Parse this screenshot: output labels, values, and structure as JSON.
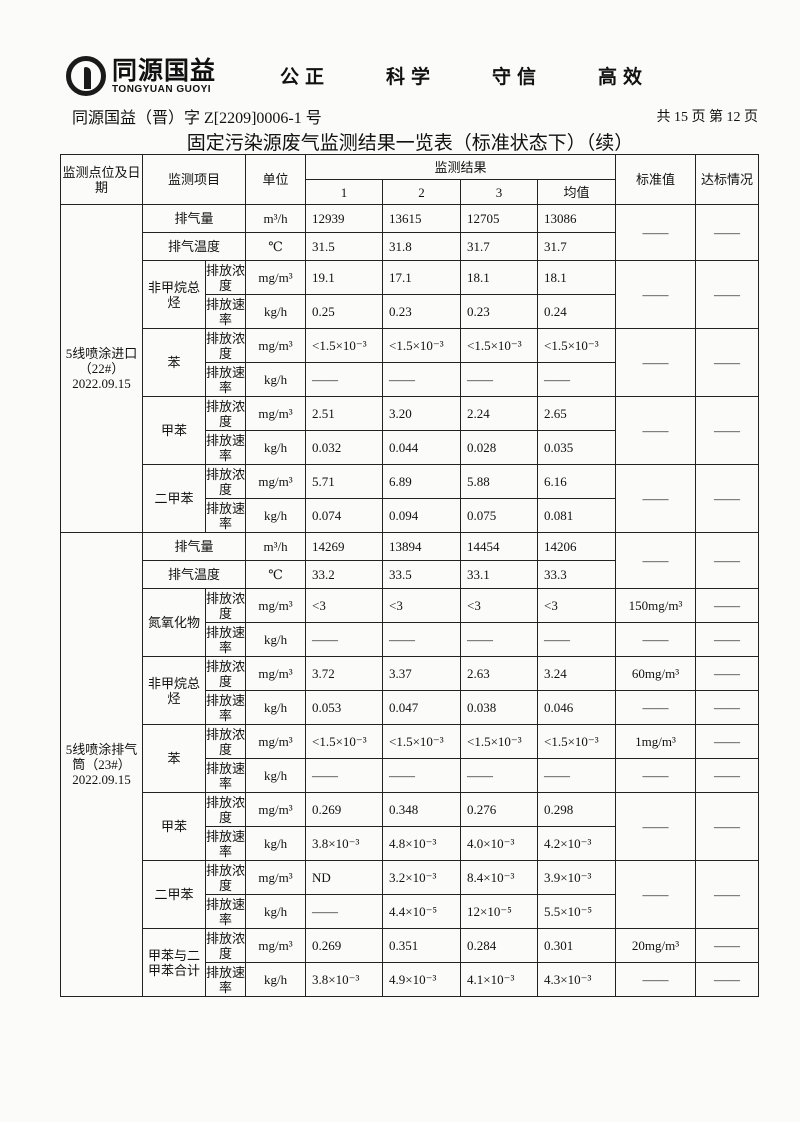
{
  "header": {
    "logo_cn": "同源国益",
    "logo_en": "TONGYUAN GUOYI",
    "slogans": [
      "公正",
      "科学",
      "守信",
      "高效"
    ],
    "doc_no": "同源国益（晋）字 Z[2209]0006-1 号",
    "page_info": "共 15 页  第 12 页",
    "title": "固定污染源废气监测结果一览表（标准状态下）（续）"
  },
  "table": {
    "headers": {
      "site": "监测点位及日期",
      "item": "监测项目",
      "unit": "单位",
      "results": "监测结果",
      "cols": [
        "1",
        "2",
        "3",
        "均值"
      ],
      "std": "标准值",
      "pass": "达标情况"
    },
    "sections": [
      {
        "site": "5线喷涂进口（22#）2022.09.15",
        "groups": [
          {
            "rows": [
              {
                "item": "排气量",
                "unit": "m³/h",
                "values": [
                  "12939",
                  "13615",
                  "12705",
                  "13086"
                ]
              },
              {
                "item": "排气温度",
                "unit": "℃",
                "values": [
                  "31.5",
                  "31.8",
                  "31.7",
                  "31.7"
                ]
              }
            ],
            "std": [
              "——"
            ],
            "pass": [
              "——"
            ]
          },
          {
            "item": "非甲烷总烃",
            "rows": [
              {
                "sub": "排放浓度",
                "unit": "mg/m³",
                "values": [
                  "19.1",
                  "17.1",
                  "18.1",
                  "18.1"
                ]
              },
              {
                "sub": "排放速率",
                "unit": "kg/h",
                "values": [
                  "0.25",
                  "0.23",
                  "0.23",
                  "0.24"
                ]
              }
            ],
            "std": [
              "——"
            ],
            "pass": [
              "——"
            ]
          },
          {
            "item": "苯",
            "rows": [
              {
                "sub": "排放浓度",
                "unit": "mg/m³",
                "values": [
                  "<1.5×10⁻³",
                  "<1.5×10⁻³",
                  "<1.5×10⁻³",
                  "<1.5×10⁻³"
                ]
              },
              {
                "sub": "排放速率",
                "unit": "kg/h",
                "values": [
                  "——",
                  "——",
                  "——",
                  "——"
                ]
              }
            ],
            "std": [
              "——"
            ],
            "pass": [
              "——"
            ]
          },
          {
            "item": "甲苯",
            "rows": [
              {
                "sub": "排放浓度",
                "unit": "mg/m³",
                "values": [
                  "2.51",
                  "3.20",
                  "2.24",
                  "2.65"
                ]
              },
              {
                "sub": "排放速率",
                "unit": "kg/h",
                "values": [
                  "0.032",
                  "0.044",
                  "0.028",
                  "0.035"
                ]
              }
            ],
            "std": [
              "——"
            ],
            "pass": [
              "——"
            ]
          },
          {
            "item": "二甲苯",
            "rows": [
              {
                "sub": "排放浓度",
                "unit": "mg/m³",
                "values": [
                  "5.71",
                  "6.89",
                  "5.88",
                  "6.16"
                ]
              },
              {
                "sub": "排放速率",
                "unit": "kg/h",
                "values": [
                  "0.074",
                  "0.094",
                  "0.075",
                  "0.081"
                ]
              }
            ],
            "std": [
              "——"
            ],
            "pass": [
              "——"
            ]
          }
        ]
      },
      {
        "site": "5线喷涂排气筒（23#）2022.09.15",
        "groups": [
          {
            "rows": [
              {
                "item": "排气量",
                "unit": "m³/h",
                "values": [
                  "14269",
                  "13894",
                  "14454",
                  "14206"
                ]
              },
              {
                "item": "排气温度",
                "unit": "℃",
                "values": [
                  "33.2",
                  "33.5",
                  "33.1",
                  "33.3"
                ]
              }
            ],
            "std": [
              "——"
            ],
            "pass": [
              "——"
            ]
          },
          {
            "item": "氮氧化物",
            "rows": [
              {
                "sub": "排放浓度",
                "unit": "mg/m³",
                "values": [
                  "<3",
                  "<3",
                  "<3",
                  "<3"
                ]
              },
              {
                "sub": "排放速率",
                "unit": "kg/h",
                "values": [
                  "——",
                  "——",
                  "——",
                  "——"
                ]
              }
            ],
            "std": [
              "150mg/m³",
              "——"
            ],
            "pass": [
              "——",
              "——"
            ]
          },
          {
            "item": "非甲烷总烃",
            "rows": [
              {
                "sub": "排放浓度",
                "unit": "mg/m³",
                "values": [
                  "3.72",
                  "3.37",
                  "2.63",
                  "3.24"
                ]
              },
              {
                "sub": "排放速率",
                "unit": "kg/h",
                "values": [
                  "0.053",
                  "0.047",
                  "0.038",
                  "0.046"
                ]
              }
            ],
            "std": [
              "60mg/m³",
              "——"
            ],
            "pass": [
              "——",
              "——"
            ]
          },
          {
            "item": "苯",
            "rows": [
              {
                "sub": "排放浓度",
                "unit": "mg/m³",
                "values": [
                  "<1.5×10⁻³",
                  "<1.5×10⁻³",
                  "<1.5×10⁻³",
                  "<1.5×10⁻³"
                ]
              },
              {
                "sub": "排放速率",
                "unit": "kg/h",
                "values": [
                  "——",
                  "——",
                  "——",
                  "——"
                ]
              }
            ],
            "std": [
              "1mg/m³",
              "——"
            ],
            "pass": [
              "——",
              "——"
            ]
          },
          {
            "item": "甲苯",
            "rows": [
              {
                "sub": "排放浓度",
                "unit": "mg/m³",
                "values": [
                  "0.269",
                  "0.348",
                  "0.276",
                  "0.298"
                ]
              },
              {
                "sub": "排放速率",
                "unit": "kg/h",
                "values": [
                  "3.8×10⁻³",
                  "4.8×10⁻³",
                  "4.0×10⁻³",
                  "4.2×10⁻³"
                ]
              }
            ],
            "std": [
              "——"
            ],
            "pass": [
              "——"
            ]
          },
          {
            "item": "二甲苯",
            "rows": [
              {
                "sub": "排放浓度",
                "unit": "mg/m³",
                "values": [
                  "ND",
                  "3.2×10⁻³",
                  "8.4×10⁻³",
                  "3.9×10⁻³"
                ]
              },
              {
                "sub": "排放速率",
                "unit": "kg/h",
                "values": [
                  "——",
                  "4.4×10⁻⁵",
                  "12×10⁻⁵",
                  "5.5×10⁻⁵"
                ]
              }
            ],
            "std": [
              "——"
            ],
            "pass": [
              "——"
            ]
          },
          {
            "item": "甲苯与二甲苯合计",
            "rows": [
              {
                "sub": "排放浓度",
                "unit": "mg/m³",
                "values": [
                  "0.269",
                  "0.351",
                  "0.284",
                  "0.301"
                ]
              },
              {
                "sub": "排放速率",
                "unit": "kg/h",
                "values": [
                  "3.8×10⁻³",
                  "4.9×10⁻³",
                  "4.1×10⁻³",
                  "4.3×10⁻³"
                ]
              }
            ],
            "std": [
              "20mg/m³",
              "——"
            ],
            "pass": [
              "——",
              "——"
            ]
          }
        ]
      }
    ]
  }
}
